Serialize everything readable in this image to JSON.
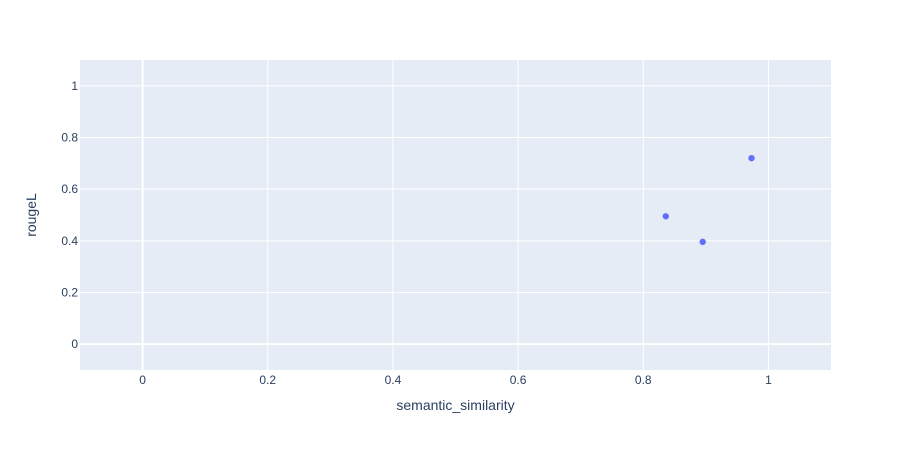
{
  "chart_data": {
    "type": "scatter",
    "title": "",
    "xlabel": "semantic_similarity",
    "ylabel": "rougeL",
    "xlim": [
      -0.1,
      1.1
    ],
    "ylim": [
      -0.1,
      1.1
    ],
    "xticks": [
      0,
      0.2,
      0.4,
      0.6,
      0.8,
      1
    ],
    "xtick_labels": [
      "0",
      "0.2",
      "0.4",
      "0.6",
      "0.8",
      "1"
    ],
    "yticks": [
      0,
      0.2,
      0.4,
      0.6,
      0.8,
      1
    ],
    "ytick_labels": [
      "0",
      "0.2",
      "0.4",
      "0.6",
      "0.8",
      "1"
    ],
    "grid": true,
    "legend": "none",
    "colors": {
      "plot_bg": "#e5ecf6",
      "grid": "#ffffff",
      "marker": "#636efa",
      "text": "#2a3f5f"
    },
    "series": [
      {
        "x": [
          0.836,
          0.895,
          0.973
        ],
        "y": [
          0.495,
          0.396,
          0.72
        ]
      }
    ]
  }
}
